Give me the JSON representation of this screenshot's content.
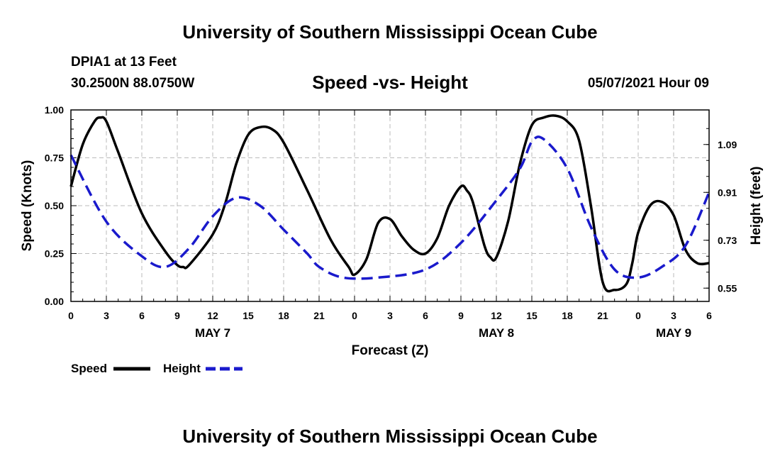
{
  "header": {
    "title": "University of Southern Mississippi Ocean Cube",
    "station": "DPIA1 at 13 Feet",
    "coords": "30.2500N  88.0750W",
    "chart_title": "Speed -vs- Height",
    "datetime": "05/07/2021 Hour 09"
  },
  "footer": {
    "title": "University of Southern Mississippi Ocean Cube"
  },
  "colors": {
    "speed": "#000000",
    "height": "#1a1acc",
    "grid": "#bbbbbb"
  },
  "chart_data": {
    "type": "line",
    "title": "Speed -vs- Height",
    "xlabel": "Forecast (Z)",
    "ylabel": "Speed (Knots)",
    "y2label": "Height (feet)",
    "x_unit": "hours from 05/07 00Z",
    "xlim": [
      0,
      54
    ],
    "ylim": [
      0,
      1
    ],
    "y2lim": [
      0.5,
      1.22
    ],
    "x_ticks": [
      0,
      3,
      6,
      9,
      12,
      15,
      18,
      21,
      24,
      27,
      30,
      33,
      36,
      39,
      42,
      45,
      48,
      51,
      54
    ],
    "x_tick_labels": [
      "0",
      "3",
      "6",
      "9",
      "12",
      "15",
      "18",
      "21",
      "0",
      "3",
      "6",
      "9",
      "12",
      "15",
      "18",
      "21",
      "0",
      "3",
      "6"
    ],
    "y_ticks": [
      0,
      0.25,
      0.5,
      0.75,
      1.0
    ],
    "y_tick_labels": [
      "0.00",
      "0.25",
      "0.50",
      "0.75",
      "1.00"
    ],
    "y2_ticks": [
      0.55,
      0.73,
      0.91,
      1.09
    ],
    "y2_tick_labels": [
      "0.55",
      "0.73",
      "0.91",
      "1.09"
    ],
    "date_labels": [
      {
        "x": 12,
        "label": "MAY 7"
      },
      {
        "x": 36,
        "label": "MAY 8"
      },
      {
        "x": 51,
        "label": "MAY 9"
      }
    ],
    "legend": [
      {
        "name": "Speed",
        "style": "solid"
      },
      {
        "name": "Height",
        "style": "dashed"
      }
    ],
    "series": [
      {
        "name": "Speed",
        "axis": "left",
        "x": [
          0,
          1,
          2,
          2.5,
          3,
          4,
          6,
          8,
          9,
          9.5,
          10,
          12,
          13,
          14,
          15,
          16,
          17,
          18,
          20,
          22,
          23.5,
          24,
          25,
          26,
          27,
          28,
          29,
          30,
          31,
          32,
          33,
          33.5,
          34,
          35,
          35.5,
          36,
          37,
          38,
          39,
          40,
          41,
          42,
          43,
          44,
          45,
          46,
          47,
          47.5,
          48,
          49,
          50,
          51,
          52,
          53,
          54
        ],
        "values": [
          0.6,
          0.82,
          0.94,
          0.96,
          0.94,
          0.78,
          0.46,
          0.26,
          0.19,
          0.18,
          0.19,
          0.35,
          0.5,
          0.72,
          0.87,
          0.91,
          0.9,
          0.83,
          0.58,
          0.32,
          0.18,
          0.14,
          0.22,
          0.41,
          0.43,
          0.34,
          0.27,
          0.25,
          0.33,
          0.5,
          0.6,
          0.58,
          0.52,
          0.29,
          0.23,
          0.23,
          0.42,
          0.72,
          0.92,
          0.96,
          0.97,
          0.94,
          0.84,
          0.5,
          0.1,
          0.06,
          0.09,
          0.2,
          0.36,
          0.5,
          0.52,
          0.45,
          0.27,
          0.2,
          0.2
        ]
      },
      {
        "name": "Height",
        "axis": "right",
        "x": [
          0,
          3,
          6,
          8,
          10,
          12,
          14,
          16,
          18,
          20,
          21,
          23,
          26,
          30,
          33,
          36,
          38,
          39,
          40,
          42,
          44,
          46,
          48,
          50,
          52,
          54
        ],
        "values": [
          1.05,
          0.8,
          0.67,
          0.63,
          0.7,
          0.82,
          0.89,
          0.86,
          0.77,
          0.68,
          0.63,
          0.59,
          0.59,
          0.62,
          0.72,
          0.88,
          1.0,
          1.1,
          1.11,
          1.0,
          0.78,
          0.62,
          0.59,
          0.63,
          0.71,
          0.91
        ]
      }
    ]
  }
}
